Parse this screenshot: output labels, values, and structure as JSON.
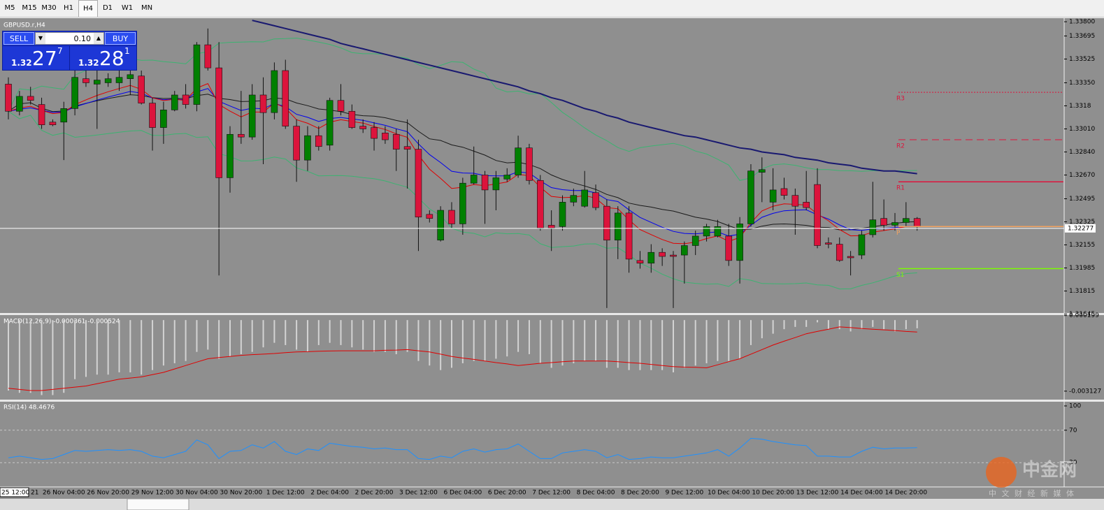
{
  "toolbar": {
    "timeframes": [
      "M5",
      "M15",
      "M30",
      "H1",
      "H4",
      "D1",
      "W1",
      "MN"
    ],
    "selected": 4
  },
  "trade_panel": {
    "sell": "SELL",
    "buy": "BUY",
    "lot": "0.10",
    "bid": {
      "prefix": "1.32",
      "big": "27",
      "small": "7"
    },
    "ask": {
      "prefix": "1.32",
      "big": "28",
      "small": "1"
    }
  },
  "watermark": {
    "name": "中金网",
    "tagline": "中 文 财 经 新 媒 体"
  },
  "chart_data": [
    {
      "type": "candlestick",
      "title": "GBPUSD.r,H4",
      "up_color": "#008000",
      "down_color": "#dc143c",
      "cursor_label": "25 12:00",
      "first_label": "21",
      "x": [
        null,
        null,
        null,
        null,
        null,
        "26 Nov 04:00",
        null,
        null,
        null,
        "26 Nov 20:00",
        null,
        null,
        null,
        "29 Nov 12:00",
        null,
        null,
        null,
        "30 Nov 04:00",
        null,
        null,
        null,
        "30 Nov 20:00",
        null,
        null,
        null,
        "1 Dec 12:00",
        null,
        null,
        null,
        "2 Dec 04:00",
        null,
        null,
        null,
        "2 Dec 20:00",
        null,
        null,
        null,
        "3 Dec 12:00",
        null,
        null,
        null,
        "6 Dec 04:00",
        null,
        null,
        null,
        "6 Dec 20:00",
        null,
        null,
        null,
        "7 Dec 12:00",
        null,
        null,
        null,
        "8 Dec 04:00",
        null,
        null,
        null,
        "8 Dec 20:00",
        null,
        null,
        null,
        "9 Dec 12:00",
        null,
        null,
        null,
        "10 Dec 04:00",
        null,
        null,
        null,
        "10 Dec 20:00",
        null,
        null,
        null,
        "13 Dec 12:00",
        null,
        null,
        null,
        "14 Dec 04:00",
        null,
        null,
        null,
        "14 Dec 20:00",
        null
      ],
      "candles": [
        [
          1.3334,
          1.3339,
          1.3308,
          1.3314
        ],
        [
          1.3314,
          1.3329,
          1.3311,
          1.3325
        ],
        [
          1.3325,
          1.3332,
          1.3319,
          1.3322
        ],
        [
          1.3319,
          1.3324,
          1.3301,
          1.3304
        ],
        [
          1.3306,
          1.3308,
          1.3303,
          1.3304
        ],
        [
          1.3306,
          1.3321,
          1.3278,
          1.3316
        ],
        [
          1.3316,
          1.3346,
          1.3311,
          1.3339
        ],
        [
          1.3338,
          1.3344,
          1.3332,
          1.3335
        ],
        [
          1.3334,
          1.3344,
          1.3301,
          1.3337
        ],
        [
          1.3335,
          1.3342,
          1.3332,
          1.3338
        ],
        [
          1.3335,
          1.3344,
          1.3329,
          1.3339
        ],
        [
          1.3338,
          1.3346,
          1.3326,
          1.3341
        ],
        [
          1.334,
          1.3344,
          1.3319,
          1.332
        ],
        [
          1.332,
          1.3324,
          1.3285,
          1.3302
        ],
        [
          1.3302,
          1.3321,
          1.329,
          1.3315
        ],
        [
          1.3315,
          1.3329,
          1.3314,
          1.3326
        ],
        [
          1.3326,
          1.3334,
          1.3316,
          1.3319
        ],
        [
          1.3319,
          1.3365,
          1.3314,
          1.3363
        ],
        [
          1.3363,
          1.3375,
          1.3344,
          1.3346
        ],
        [
          1.3346,
          1.3365,
          1.3193,
          1.3265
        ],
        [
          1.3265,
          1.3303,
          1.3254,
          1.3297
        ],
        [
          1.3297,
          1.3329,
          1.329,
          1.3295
        ],
        [
          1.3295,
          1.3334,
          1.3293,
          1.3326
        ],
        [
          1.3326,
          1.3339,
          1.3275,
          1.3313
        ],
        [
          1.3313,
          1.335,
          1.3308,
          1.3344
        ],
        [
          1.3344,
          1.3352,
          1.3301,
          1.3303
        ],
        [
          1.3303,
          1.3308,
          1.3262,
          1.3278
        ],
        [
          1.3278,
          1.3303,
          1.327,
          1.3296
        ],
        [
          1.3296,
          1.3303,
          1.3285,
          1.3288
        ],
        [
          1.3289,
          1.3324,
          1.3285,
          1.3322
        ],
        [
          1.3322,
          1.3334,
          1.3311,
          1.3314
        ],
        [
          1.3314,
          1.3319,
          1.3301,
          1.3302
        ],
        [
          1.3303,
          1.3308,
          1.3298,
          1.3301
        ],
        [
          1.3302,
          1.3306,
          1.3285,
          1.3294
        ],
        [
          1.3298,
          1.3303,
          1.329,
          1.3293
        ],
        [
          1.3297,
          1.3301,
          1.327,
          1.3286
        ],
        [
          1.3288,
          1.3308,
          1.3257,
          1.3286
        ],
        [
          1.3286,
          1.3293,
          1.3211,
          1.3236
        ],
        [
          1.3238,
          1.3241,
          1.3232,
          1.3235
        ],
        [
          1.3219,
          1.3244,
          1.3218,
          1.3241
        ],
        [
          1.3241,
          1.3247,
          1.3228,
          1.3231
        ],
        [
          1.3231,
          1.3265,
          1.3223,
          1.3261
        ],
        [
          1.3261,
          1.3288,
          1.326,
          1.3267
        ],
        [
          1.3267,
          1.327,
          1.3231,
          1.3256
        ],
        [
          1.3256,
          1.327,
          1.3241,
          1.3265
        ],
        [
          1.3264,
          1.3272,
          1.3262,
          1.3267
        ],
        [
          1.3267,
          1.3296,
          1.3265,
          1.3287
        ],
        [
          1.3287,
          1.329,
          1.326,
          1.3263
        ],
        [
          1.3263,
          1.3267,
          1.3226,
          1.3228
        ],
        [
          1.323,
          1.3241,
          1.3211,
          1.3228
        ],
        [
          1.3229,
          1.3252,
          1.3226,
          1.3247
        ],
        [
          1.3247,
          1.3257,
          1.3244,
          1.3252
        ],
        [
          1.3244,
          1.327,
          1.3243,
          1.3256
        ],
        [
          1.3254,
          1.326,
          1.3241,
          1.3243
        ],
        [
          1.3244,
          1.3249,
          1.3169,
          1.3219
        ],
        [
          1.3219,
          1.3244,
          1.3205,
          1.3239
        ],
        [
          1.3239,
          1.3244,
          1.3195,
          1.3205
        ],
        [
          1.3204,
          1.3211,
          1.3198,
          1.3202
        ],
        [
          1.3202,
          1.3216,
          1.3195,
          1.321
        ],
        [
          1.321,
          1.3213,
          1.32,
          1.3207
        ],
        [
          1.3208,
          1.3211,
          1.3169,
          1.3207
        ],
        [
          1.3208,
          1.3218,
          1.3187,
          1.3215
        ],
        [
          1.3215,
          1.3226,
          1.3208,
          1.3222
        ],
        [
          1.3222,
          1.3231,
          1.3218,
          1.3229
        ],
        [
          1.3222,
          1.3234,
          1.3221,
          1.3229
        ],
        [
          1.3222,
          1.3231,
          1.32,
          1.3204
        ],
        [
          1.3204,
          1.3236,
          1.3187,
          1.3231
        ],
        [
          1.3231,
          1.3275,
          1.3229,
          1.327
        ],
        [
          1.3269,
          1.328,
          1.3247,
          1.3271
        ],
        [
          1.3247,
          1.3272,
          1.3241,
          1.3256
        ],
        [
          1.3257,
          1.3265,
          1.3249,
          1.3252
        ],
        [
          1.3252,
          1.3257,
          1.3223,
          1.3244
        ],
        [
          1.3247,
          1.327,
          1.3241,
          1.3243
        ],
        [
          1.326,
          1.3272,
          1.3213,
          1.3215
        ],
        [
          1.3217,
          1.3221,
          1.3213,
          1.3216
        ],
        [
          1.3216,
          1.3221,
          1.3203,
          1.3204
        ],
        [
          1.3207,
          1.3211,
          1.3193,
          1.3206
        ],
        [
          1.3208,
          1.3226,
          1.3205,
          1.3223
        ],
        [
          1.3223,
          1.3262,
          1.3221,
          1.3234
        ],
        [
          1.3235,
          1.3249,
          1.3226,
          1.323
        ],
        [
          1.323,
          1.3239,
          1.3226,
          1.3232
        ],
        [
          1.3232,
          1.3247,
          1.3229,
          1.3235
        ],
        [
          1.3235,
          1.3236,
          1.3226,
          1.3229
        ]
      ],
      "ma_long": [
        null,
        null,
        null,
        null,
        null,
        null,
        null,
        null,
        null,
        null,
        null,
        null,
        null,
        null,
        null,
        null,
        null,
        null,
        null,
        null,
        null,
        null,
        1.3381,
        1.3379,
        1.3377,
        1.3375,
        1.3373,
        1.3371,
        1.3369,
        1.3367,
        1.3364,
        1.3362,
        1.336,
        1.3358,
        1.3356,
        1.3354,
        1.3352,
        1.335,
        1.3348,
        1.3346,
        1.3344,
        1.3342,
        1.334,
        1.3338,
        1.3336,
        1.3334,
        1.3332,
        1.3329,
        1.3327,
        1.3324,
        1.3322,
        1.3319,
        1.3316,
        1.3314,
        1.3311,
        1.3309,
        1.3306,
        1.3304,
        1.3302,
        1.33,
        1.3298,
        1.3296,
        1.3295,
        1.3293,
        1.3291,
        1.3289,
        1.3287,
        1.3286,
        1.3284,
        1.3283,
        1.3282,
        1.328,
        1.3279,
        1.3278,
        1.3276,
        1.3275,
        1.3274,
        1.3272,
        1.3271,
        1.327,
        1.327,
        1.3269,
        1.3268
      ],
      "ma_long_color": "#191970",
      "current_price": 1.32277,
      "pivots": [
        {
          "label": "R3",
          "value": 1.3328,
          "color": "#dc143c",
          "style": "dotted"
        },
        {
          "label": "R2",
          "value": 1.3293,
          "color": "#dc143c",
          "style": "dashed"
        },
        {
          "label": "R1",
          "value": 1.3262,
          "color": "#dc143c",
          "style": "solid"
        },
        {
          "label": "P",
          "value": 1.3229,
          "color": "#f4a460",
          "style": "solid"
        },
        {
          "label": "S1",
          "value": 1.3198,
          "color": "#7cfc00",
          "style": "solid"
        }
      ],
      "ylim": [
        1.31653,
        1.33816
      ],
      "yticks": [
        {
          "value": 1.338,
          "label": "1.33800"
        },
        1.33695,
        1.33525,
        {
          "value": 1.3335,
          "label": "1.33350"
        },
        1.3318,
        {
          "value": 1.3301,
          "label": "1.33010"
        },
        {
          "value": 1.3284,
          "label": "1.32840"
        },
        {
          "value": 1.3267,
          "label": "1.32670"
        },
        1.32495,
        1.32325,
        1.32155,
        1.31985,
        1.31815,
        1.31645
      ]
    },
    {
      "type": "macd",
      "title": "MACD(12,26,9) -0.000361 -0.000524",
      "histogram_color": "#d3d3d3",
      "signal_color": "#e00000",
      "histogram": [
        -0.0031,
        -0.0032,
        -0.0032,
        -0.0033,
        -0.0033,
        -0.0032,
        -0.0026,
        -0.0025,
        -0.0024,
        -0.0024,
        -0.0023,
        -0.0023,
        -0.0024,
        -0.0022,
        -0.002,
        -0.0019,
        -0.0018,
        -0.0014,
        -0.0013,
        -0.0017,
        -0.0016,
        -0.0015,
        -0.0014,
        -0.0012,
        -0.001,
        -0.0011,
        -0.0013,
        -0.0014,
        -0.0011,
        -0.001,
        -0.0011,
        -0.0012,
        -0.0013,
        -0.0014,
        -0.0014,
        -0.0015,
        -0.0014,
        -0.0018,
        -0.002,
        -0.0022,
        -0.0021,
        -0.0019,
        -0.0018,
        -0.0018,
        -0.0017,
        -0.0016,
        -0.0014,
        -0.0015,
        -0.0019,
        -0.0021,
        -0.002,
        -0.0019,
        -0.0018,
        -0.0018,
        -0.0021,
        -0.0021,
        -0.0022,
        -0.0022,
        -0.0022,
        -0.0022,
        -0.0023,
        -0.0021,
        -0.002,
        -0.0019,
        -0.0018,
        -0.0018,
        -0.0017,
        -0.0011,
        -0.0008,
        -0.0006,
        -0.0004,
        -0.0003,
        -0.0003,
        -0.0001,
        -0.0004,
        -0.0004,
        -0.0005,
        -0.0004,
        -0.0003,
        -0.0004,
        -0.0005,
        -0.0004,
        -0.000361
      ],
      "signal": [
        -0.003,
        -0.00305,
        -0.0031,
        -0.0031,
        -0.00305,
        -0.003,
        -0.00295,
        -0.0029,
        -0.0028,
        -0.0027,
        -0.0026,
        -0.00255,
        -0.0025,
        -0.0024,
        -0.0023,
        -0.00215,
        -0.002,
        -0.00185,
        -0.0017,
        -0.00165,
        -0.0016,
        -0.00155,
        -0.00152,
        -0.0015,
        -0.00147,
        -0.00143,
        -0.0014,
        -0.00139,
        -0.00137,
        -0.00136,
        -0.00135,
        -0.00135,
        -0.00135,
        -0.00135,
        -0.00133,
        -0.00132,
        -0.0013,
        -0.00135,
        -0.0014,
        -0.0015,
        -0.0016,
        -0.00167,
        -0.00173,
        -0.0018,
        -0.00187,
        -0.00193,
        -0.002,
        -0.00195,
        -0.0019,
        -0.00187,
        -0.00183,
        -0.0018,
        -0.0018,
        -0.0018,
        -0.0018,
        -0.00183,
        -0.00187,
        -0.0019,
        -0.00195,
        -0.002,
        -0.00205,
        -0.00207,
        -0.00208,
        -0.0021,
        -0.00197,
        -0.00183,
        -0.0017,
        -0.0015,
        -0.0013,
        -0.0011,
        -0.00093,
        -0.00077,
        -0.0006,
        -0.0005,
        -0.0004,
        -0.0003,
        -0.00033,
        -0.00037,
        -0.0004,
        -0.00043,
        -0.00046,
        -0.0005,
        -0.000524
      ],
      "ylim": [
        -0.0035,
        0.00022
      ],
      "yticks": [
        0.000199,
        -0.003127
      ]
    },
    {
      "type": "rsi",
      "title": "RSI(14) 48.4676",
      "color": "#1e90ff",
      "values": [
        36,
        38,
        36,
        34,
        35,
        40,
        45,
        44,
        45,
        46,
        45,
        46,
        44,
        38,
        36,
        40,
        44,
        58,
        52,
        35,
        44,
        45,
        52,
        48,
        56,
        44,
        40,
        47,
        45,
        54,
        52,
        50,
        49,
        47,
        48,
        46,
        46,
        35,
        34,
        38,
        36,
        44,
        47,
        43,
        46,
        47,
        53,
        44,
        35,
        35,
        42,
        44,
        46,
        44,
        36,
        40,
        34,
        35,
        37,
        36,
        36,
        38,
        40,
        42,
        46,
        38,
        48,
        60,
        59,
        56,
        54,
        52,
        51,
        38,
        38,
        37,
        37,
        44,
        49,
        47,
        48,
        48,
        48.4676
      ],
      "levels": [
        70,
        30
      ],
      "ylim": [
        0,
        100
      ],
      "yticks": [
        100,
        70,
        30
      ]
    }
  ]
}
